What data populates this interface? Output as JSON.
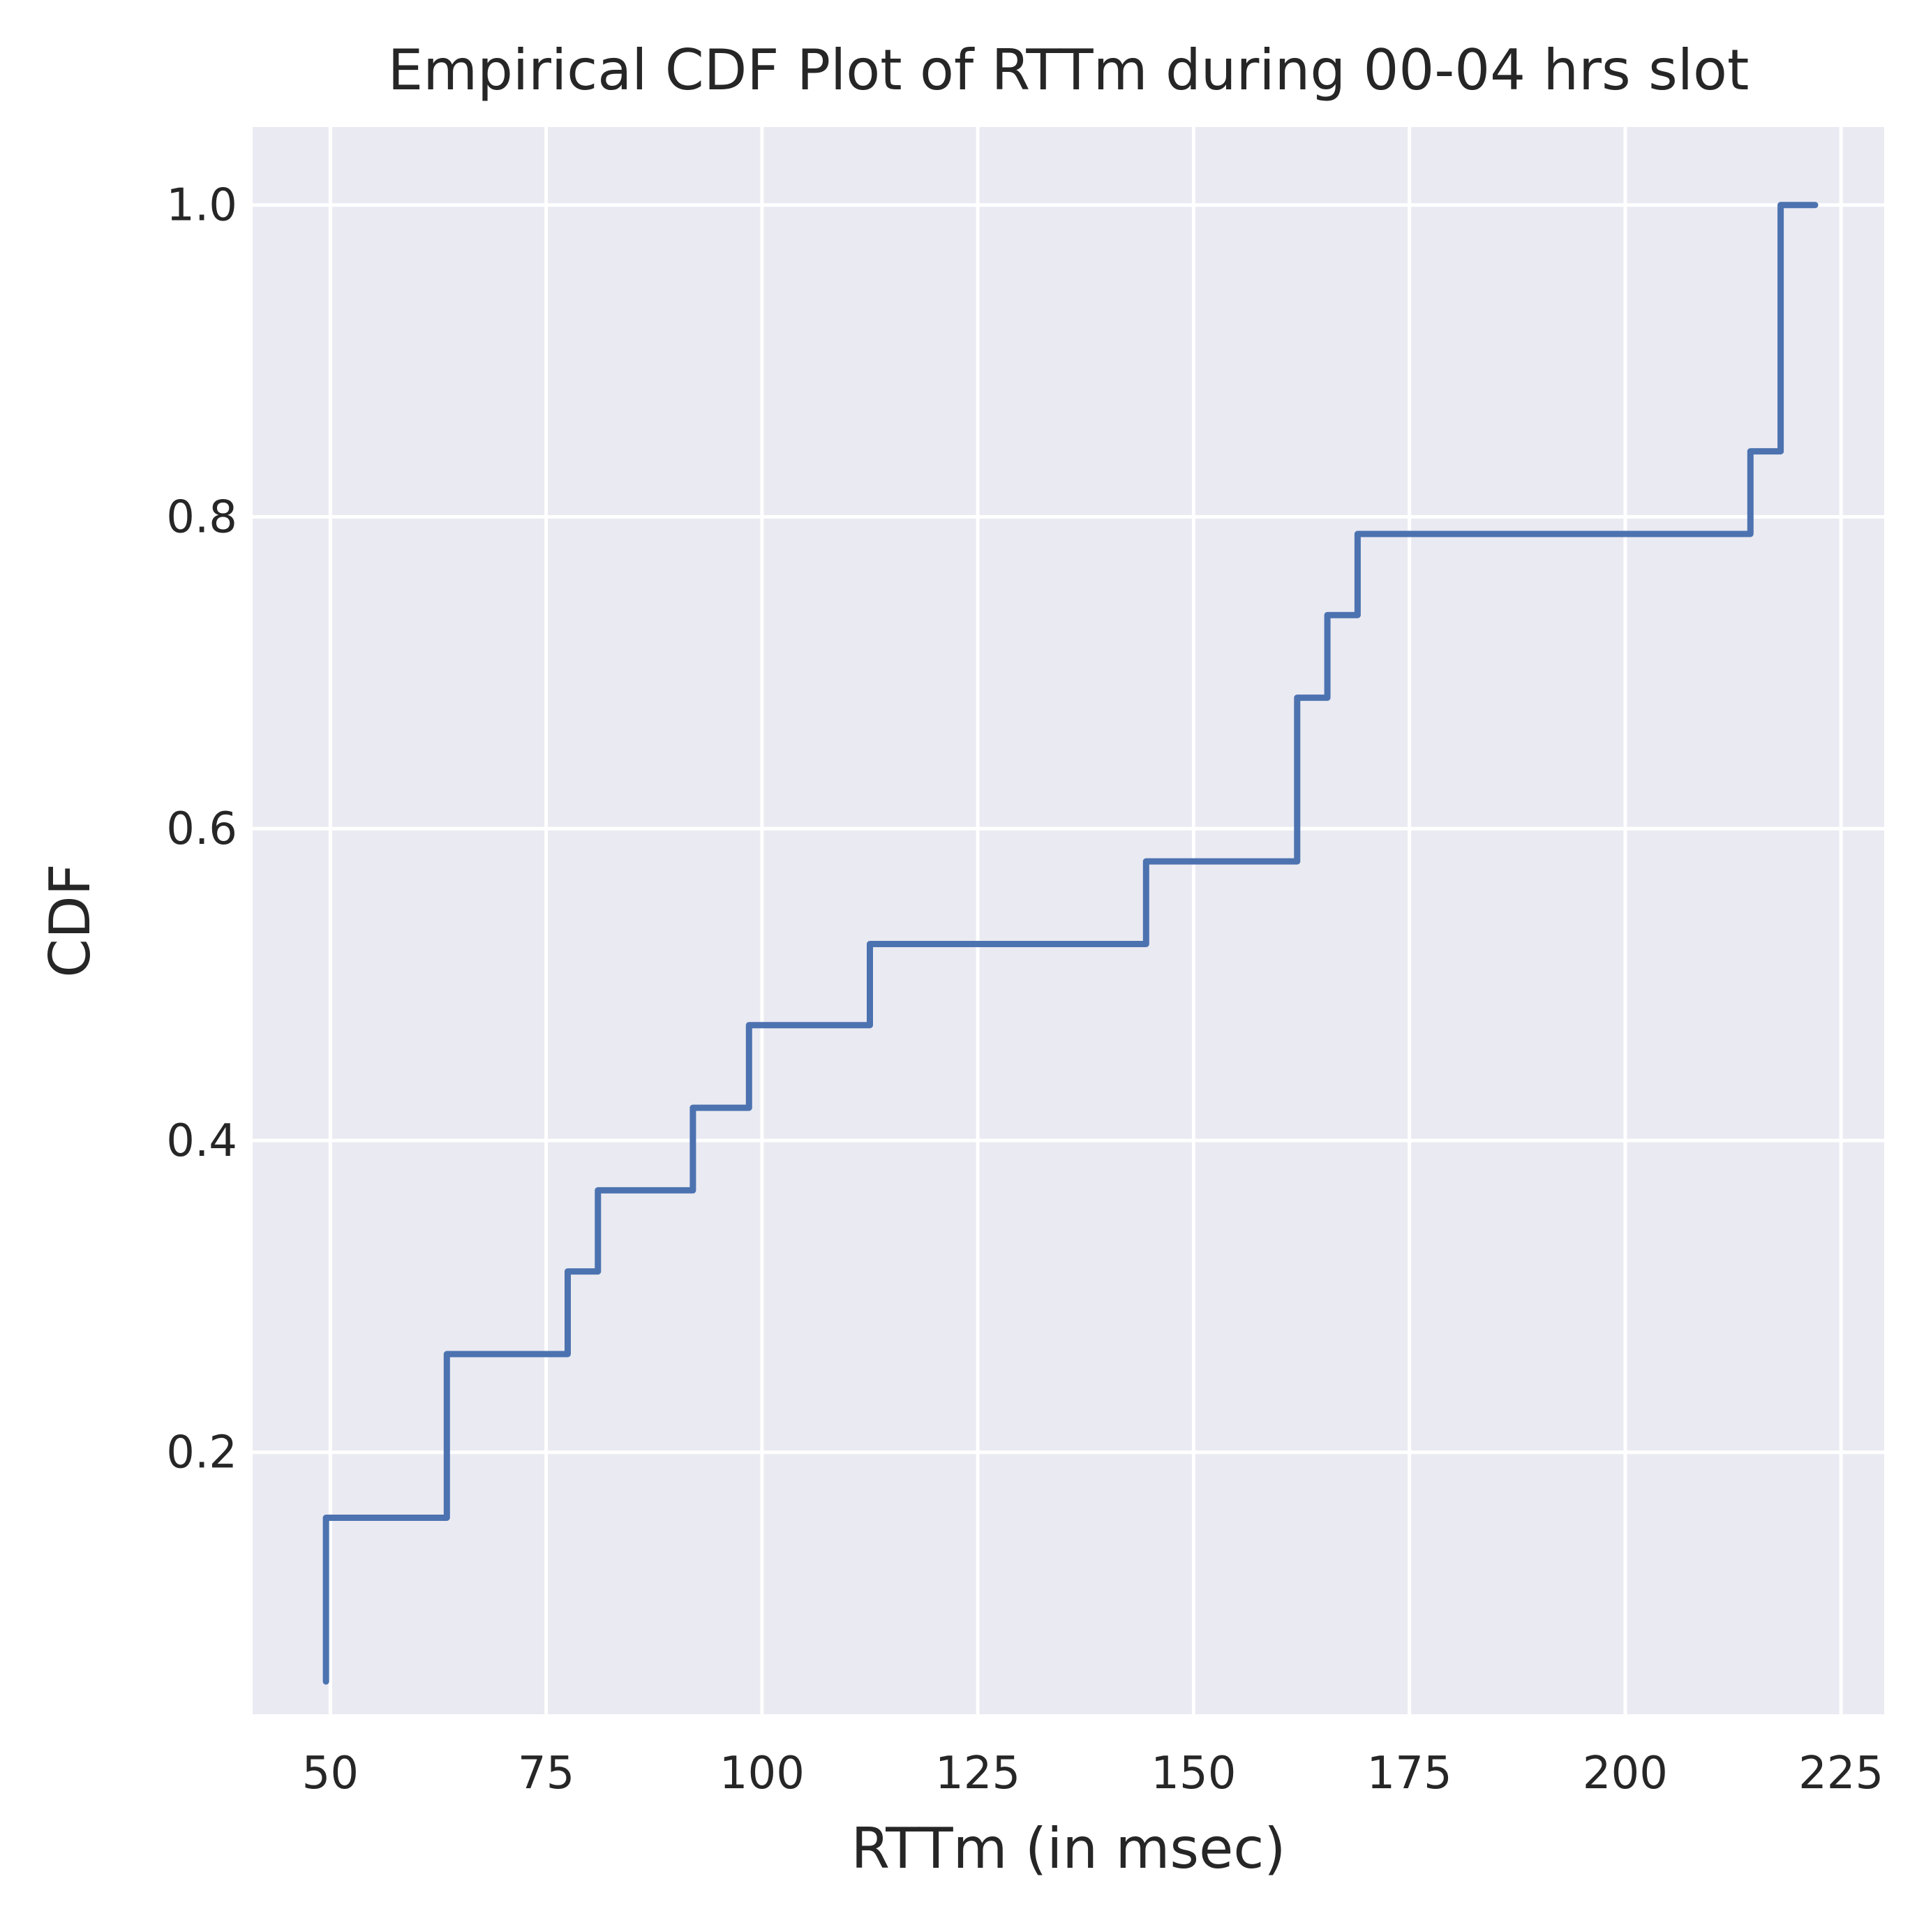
{
  "chart_data": {
    "type": "line",
    "drawstyle": "steps-post",
    "title": "Empirical CDF Plot of RTTm during 00-04 hrs slot",
    "xlabel": "RTTm (in msec)",
    "ylabel": "CDF",
    "xlim": [
      41,
      230
    ],
    "ylim": [
      0.032,
      1.05
    ],
    "xticks": [
      50,
      75,
      100,
      125,
      150,
      175,
      200,
      225
    ],
    "xtick_labels": [
      "50",
      "75",
      "100",
      "125",
      "150",
      "175",
      "200",
      "225"
    ],
    "yticks": [
      0.2,
      0.4,
      0.6,
      0.8,
      1.0
    ],
    "ytick_labels": [
      "0.2",
      "0.4",
      "0.6",
      "0.8",
      "1.0"
    ],
    "grid": true,
    "legend": "none",
    "series": [
      {
        "x": [
          49.5,
          49.5,
          63.5,
          77.5,
          81.0,
          92.0,
          98.5,
          112.5,
          144.5,
          162.0,
          165.5,
          169.0,
          214.5,
          218.0,
          222.0
        ],
        "y": [
          0.053,
          0.158,
          0.263,
          0.316,
          0.368,
          0.421,
          0.474,
          0.526,
          0.579,
          0.684,
          0.737,
          0.789,
          0.842,
          1.0,
          1.0
        ],
        "color": "#4c72b0"
      }
    ],
    "colors": {
      "plot_background": "#eaeaf2",
      "grid": "#ffffff",
      "text": "#262626"
    }
  }
}
